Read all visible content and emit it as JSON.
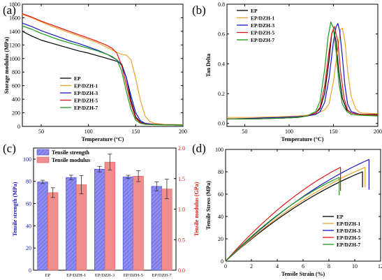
{
  "panels": [
    "(a)",
    "(b)",
    "(c)",
    "(d)"
  ],
  "colors": {
    "EP": "#000000",
    "EP/DZH-1": "#f2a12e",
    "EP/DZH-3": "#1515c8",
    "EP/DZH-5": "#e01515",
    "EP/DZH-7": "#1a9a1a",
    "bar_strength": "#8d8df0",
    "bar_modulus": "#f08d8d"
  },
  "chart_data": [
    {
      "id": "a",
      "type": "line",
      "xlabel": "Temperature (°C)",
      "ylabel": "Storage modulus (MPa)",
      "xlim": [
        30,
        200
      ],
      "ylim": [
        0,
        1800
      ],
      "xticks": [
        50,
        100,
        150,
        200
      ],
      "yticks": [
        0,
        200,
        400,
        600,
        800,
        1000,
        1200,
        1400,
        1600,
        1800
      ],
      "legend_position": "bottom-left",
      "series": [
        {
          "name": "EP",
          "x": [
            30,
            40,
            50,
            60,
            70,
            80,
            90,
            100,
            110,
            120,
            130,
            135,
            140,
            145,
            150,
            155,
            160,
            170,
            180,
            200
          ],
          "y": [
            1400,
            1330,
            1270,
            1230,
            1190,
            1150,
            1110,
            1080,
            1040,
            1000,
            960,
            920,
            720,
            380,
            140,
            60,
            40,
            30,
            25,
            20
          ]
        },
        {
          "name": "EP/DZH-1",
          "x": [
            30,
            40,
            50,
            60,
            70,
            80,
            90,
            100,
            110,
            120,
            130,
            135,
            140,
            145,
            150,
            155,
            160,
            165,
            170,
            180,
            200
          ],
          "y": [
            1650,
            1600,
            1540,
            1480,
            1430,
            1380,
            1330,
            1280,
            1230,
            1160,
            1090,
            1060,
            1050,
            980,
            700,
            380,
            150,
            70,
            45,
            30,
            25
          ]
        },
        {
          "name": "EP/DZH-3",
          "x": [
            30,
            40,
            50,
            60,
            70,
            80,
            90,
            100,
            110,
            120,
            130,
            135,
            140,
            145,
            150,
            155,
            160,
            170,
            180,
            200
          ],
          "y": [
            1520,
            1470,
            1410,
            1360,
            1310,
            1260,
            1220,
            1170,
            1120,
            1060,
            980,
            900,
            720,
            450,
            200,
            80,
            45,
            30,
            25,
            20
          ]
        },
        {
          "name": "EP/DZH-5",
          "x": [
            30,
            40,
            50,
            60,
            70,
            80,
            90,
            100,
            110,
            120,
            125,
            130,
            135,
            140,
            145,
            150,
            155,
            160,
            170,
            180,
            200
          ],
          "y": [
            1660,
            1610,
            1550,
            1500,
            1450,
            1400,
            1350,
            1300,
            1250,
            1190,
            1150,
            1080,
            900,
            620,
            330,
            120,
            55,
            35,
            28,
            25,
            20
          ]
        },
        {
          "name": "EP/DZH-7",
          "x": [
            30,
            40,
            50,
            60,
            70,
            80,
            90,
            100,
            110,
            120,
            125,
            130,
            135,
            140,
            145,
            150,
            155,
            160,
            170,
            180,
            200
          ],
          "y": [
            1480,
            1430,
            1370,
            1320,
            1270,
            1230,
            1190,
            1150,
            1110,
            1060,
            1030,
            980,
            820,
            520,
            250,
            90,
            45,
            30,
            25,
            22,
            20
          ]
        }
      ]
    },
    {
      "id": "b",
      "type": "line",
      "xlabel": "Temperature (°C)",
      "ylabel": "Tan Delta",
      "xlim": [
        30,
        200
      ],
      "ylim": [
        -0.02,
        0.8
      ],
      "xticks": [
        50,
        100,
        150,
        200
      ],
      "yticks": [
        0.0,
        0.2,
        0.4,
        0.6,
        0.8
      ],
      "legend_position": "top-left",
      "series": [
        {
          "name": "EP",
          "x": [
            30,
            60,
            90,
            110,
            120,
            130,
            135,
            140,
            145,
            148,
            150,
            153,
            156,
            160,
            165,
            170,
            180,
            200
          ],
          "y": [
            0.03,
            0.03,
            0.035,
            0.04,
            0.05,
            0.07,
            0.1,
            0.2,
            0.42,
            0.6,
            0.63,
            0.55,
            0.35,
            0.17,
            0.09,
            0.07,
            0.06,
            0.06
          ]
        },
        {
          "name": "EP/DZH-1",
          "x": [
            30,
            60,
            90,
            110,
            120,
            130,
            140,
            145,
            150,
            153,
            156,
            158,
            160,
            163,
            166,
            170,
            175,
            180,
            200
          ],
          "y": [
            0.04,
            0.04,
            0.045,
            0.05,
            0.055,
            0.065,
            0.09,
            0.13,
            0.28,
            0.42,
            0.55,
            0.63,
            0.64,
            0.55,
            0.35,
            0.18,
            0.1,
            0.07,
            0.065
          ]
        },
        {
          "name": "EP/DZH-3",
          "x": [
            30,
            60,
            90,
            110,
            120,
            130,
            135,
            140,
            145,
            150,
            153,
            155,
            157,
            160,
            163,
            166,
            170,
            180,
            200
          ],
          "y": [
            0.03,
            0.035,
            0.04,
            0.045,
            0.05,
            0.06,
            0.08,
            0.14,
            0.3,
            0.55,
            0.65,
            0.67,
            0.62,
            0.45,
            0.25,
            0.13,
            0.08,
            0.06,
            0.055
          ]
        },
        {
          "name": "EP/DZH-5",
          "x": [
            30,
            60,
            90,
            110,
            120,
            130,
            135,
            140,
            145,
            148,
            151,
            155,
            158,
            162,
            166,
            170,
            180,
            200
          ],
          "y": [
            0.03,
            0.03,
            0.035,
            0.04,
            0.05,
            0.07,
            0.11,
            0.25,
            0.48,
            0.6,
            0.65,
            0.55,
            0.35,
            0.17,
            0.09,
            0.07,
            0.06,
            0.055
          ]
        },
        {
          "name": "EP/DZH-7",
          "x": [
            30,
            60,
            90,
            110,
            120,
            130,
            135,
            140,
            144,
            147,
            150,
            153,
            156,
            160,
            165,
            170,
            180,
            200
          ],
          "y": [
            0.03,
            0.03,
            0.035,
            0.04,
            0.05,
            0.08,
            0.15,
            0.36,
            0.58,
            0.68,
            0.64,
            0.48,
            0.28,
            0.13,
            0.08,
            0.06,
            0.055,
            0.05
          ]
        }
      ]
    },
    {
      "id": "c",
      "type": "bar",
      "categories": [
        "EP",
        "EP/DZH-1",
        "EP/DZH-3",
        "EP/DZH-5",
        "EP/DZH-7"
      ],
      "ylabel": "Tensile strength (MPa)",
      "y2label": "Tensile modulus (GPa)",
      "ylim": [
        0,
        110
      ],
      "y2lim": [
        0.0,
        2.0
      ],
      "yticks": [
        0,
        20,
        40,
        60,
        80,
        100
      ],
      "y2ticks": [
        0.0,
        0.5,
        1.0,
        1.5,
        2.0
      ],
      "legend_position": "top-left",
      "series": [
        {
          "name": "Tensile strength",
          "axis": "left",
          "values": [
            79.5,
            83.5,
            91,
            84,
            75.5
          ],
          "errors": [
            1.5,
            2,
            2.5,
            1.5,
            4
          ]
        },
        {
          "name": "Tensile modulus",
          "axis": "right",
          "values": [
            1.27,
            1.4,
            1.77,
            1.54,
            1.33
          ],
          "errors": [
            0.08,
            0.15,
            0.13,
            0.09,
            0.16
          ]
        }
      ]
    },
    {
      "id": "d",
      "type": "line",
      "xlabel": "Tensile Strain (%)",
      "ylabel": "Tensile Stress (MPa)",
      "xlim": [
        0,
        12
      ],
      "ylim": [
        0,
        100
      ],
      "xticks": [
        0,
        2,
        4,
        6,
        8,
        10,
        12
      ],
      "yticks": [
        0,
        20,
        40,
        60,
        80,
        100
      ],
      "legend_position": "bottom-right",
      "series": [
        {
          "name": "EP",
          "strain_at_break": 10.6,
          "stress_at_break": 80,
          "drop_to": 66
        },
        {
          "name": "EP/DZH-1",
          "strain_at_break": 10.8,
          "stress_at_break": 84,
          "drop_to": 66
        },
        {
          "name": "EP/DZH-3",
          "strain_at_break": 11.1,
          "stress_at_break": 91,
          "drop_to": 64
        },
        {
          "name": "EP/DZH-5",
          "strain_at_break": 8.9,
          "stress_at_break": 84,
          "drop_to": 63
        },
        {
          "name": "EP/DZH-7",
          "strain_at_break": 8.8,
          "stress_at_break": 75,
          "drop_to": 59
        }
      ]
    }
  ]
}
